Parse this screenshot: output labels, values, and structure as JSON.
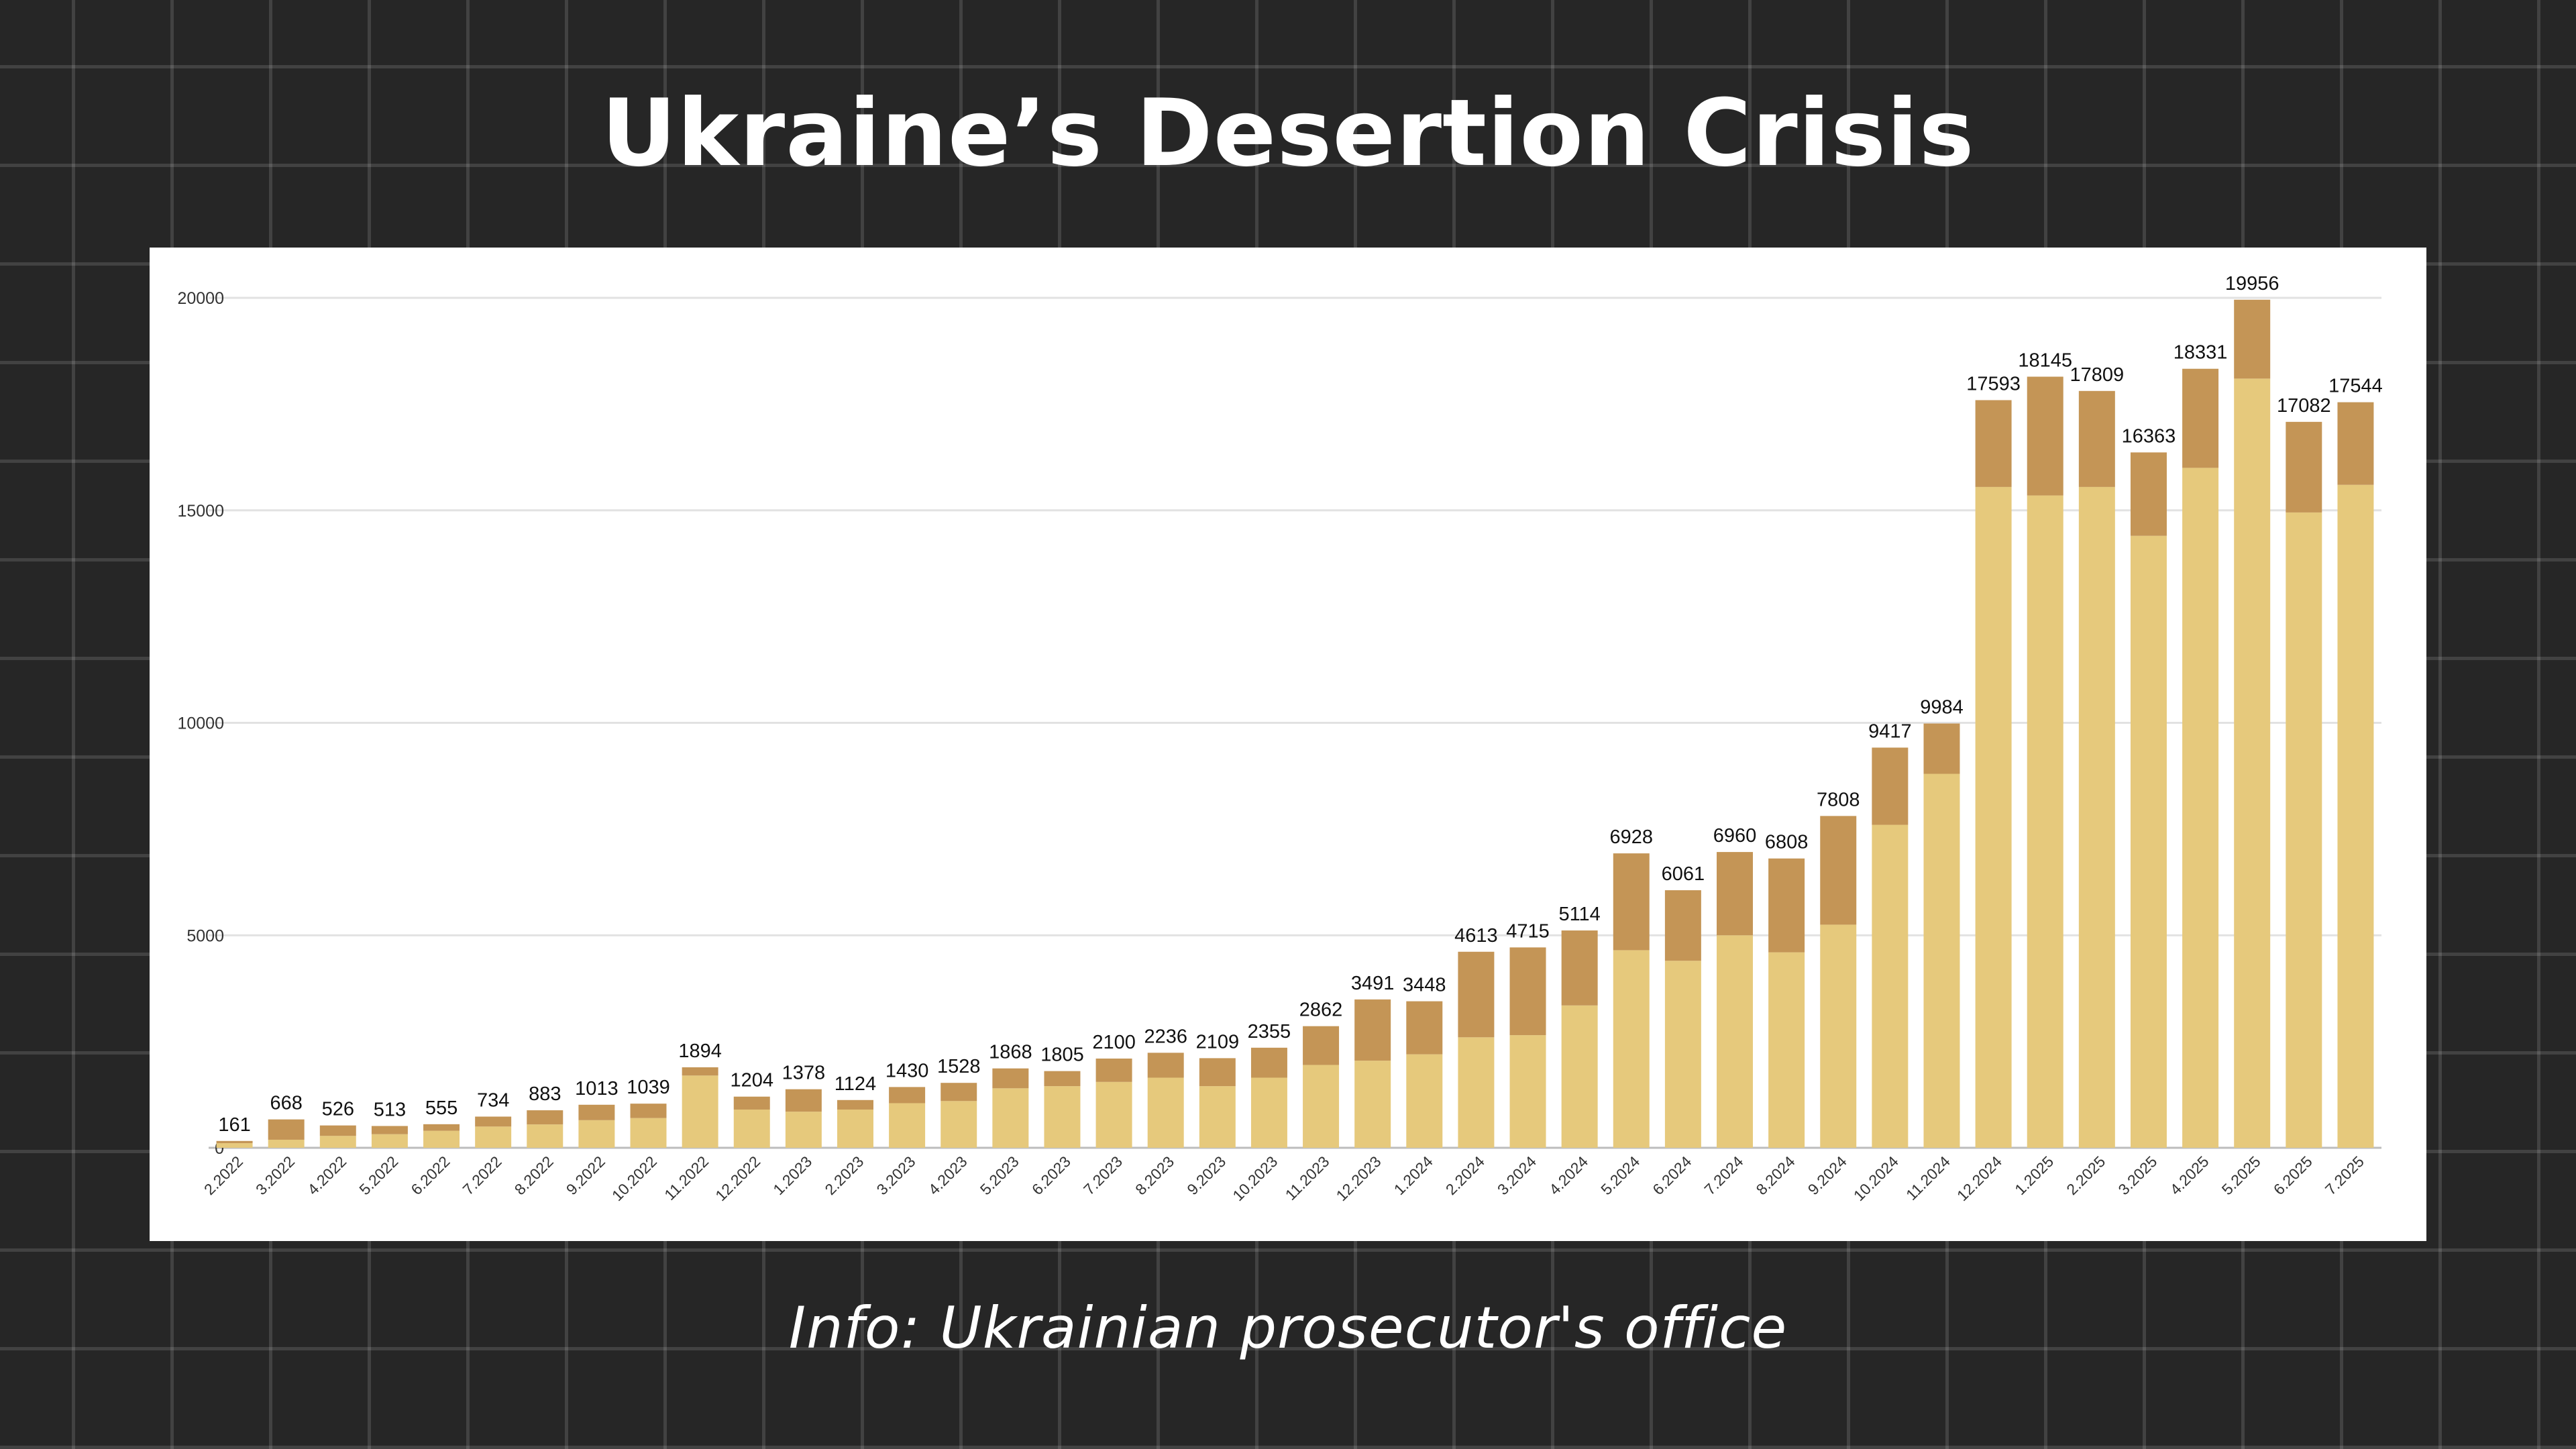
{
  "title": "Ukraine’s Desertion Crisis",
  "source": "Info: Ukrainian prosecutor's office",
  "colors": {
    "background": "#262626",
    "panel": "#ffffff",
    "bar_base": "#e6c97c",
    "bar_top": "#c49556",
    "grid": "#e2e2e2"
  },
  "chart_data": {
    "type": "bar",
    "stacked": true,
    "title": "",
    "xlabel": "",
    "ylabel": "",
    "ylim": [
      0,
      20000
    ],
    "yticks": [
      0,
      5000,
      10000,
      15000,
      20000
    ],
    "grid": true,
    "categories": [
      "2.2022",
      "3.2022",
      "4.2022",
      "5.2022",
      "6.2022",
      "7.2022",
      "8.2022",
      "9.2022",
      "10.2022",
      "11.2022",
      "12.2022",
      "1.2023",
      "2.2023",
      "3.2023",
      "4.2023",
      "5.2023",
      "6.2023",
      "7.2023",
      "8.2023",
      "9.2023",
      "10.2023",
      "11.2023",
      "12.2023",
      "1.2024",
      "2.2024",
      "3.2024",
      "4.2024",
      "5.2024",
      "6.2024",
      "7.2024",
      "8.2024",
      "9.2024",
      "10.2024",
      "11.2024",
      "12.2024",
      "1.2025",
      "2.2025",
      "3.2025",
      "4.2025",
      "5.2025",
      "6.2025",
      "7.2025"
    ],
    "totals": [
      161,
      668,
      526,
      513,
      555,
      734,
      883,
      1013,
      1039,
      1894,
      1204,
      1378,
      1124,
      1430,
      1528,
      1868,
      1805,
      2100,
      2236,
      2109,
      2355,
      2862,
      3491,
      3448,
      4613,
      4715,
      5114,
      6928,
      6061,
      6960,
      6808,
      7808,
      9417,
      9984,
      17593,
      18145,
      17809,
      16363,
      18331,
      19956,
      17082,
      17544
    ],
    "series": [
      {
        "values": [
          110,
          190,
          280,
          320,
          400,
          500,
          550,
          650,
          700,
          1700,
          900,
          850,
          900,
          1050,
          1100,
          1400,
          1450,
          1550,
          1650,
          1450,
          1650,
          1950,
          2050,
          2200,
          2600,
          2650,
          3350,
          4650,
          4400,
          5000,
          4600,
          5250,
          7600,
          8800,
          15550,
          15350,
          15550,
          14400,
          16000,
          18100,
          14950,
          15600
        ]
      },
      {
        "values": [
          51,
          478,
          246,
          193,
          155,
          234,
          333,
          363,
          339,
          194,
          304,
          528,
          224,
          380,
          428,
          468,
          355,
          550,
          586,
          659,
          705,
          912,
          1441,
          1248,
          2013,
          2065,
          1764,
          2278,
          1661,
          1960,
          2208,
          2558,
          1817,
          1184,
          2043,
          2795,
          2259,
          1963,
          2331,
          1856,
          2132,
          1944
        ]
      }
    ]
  }
}
